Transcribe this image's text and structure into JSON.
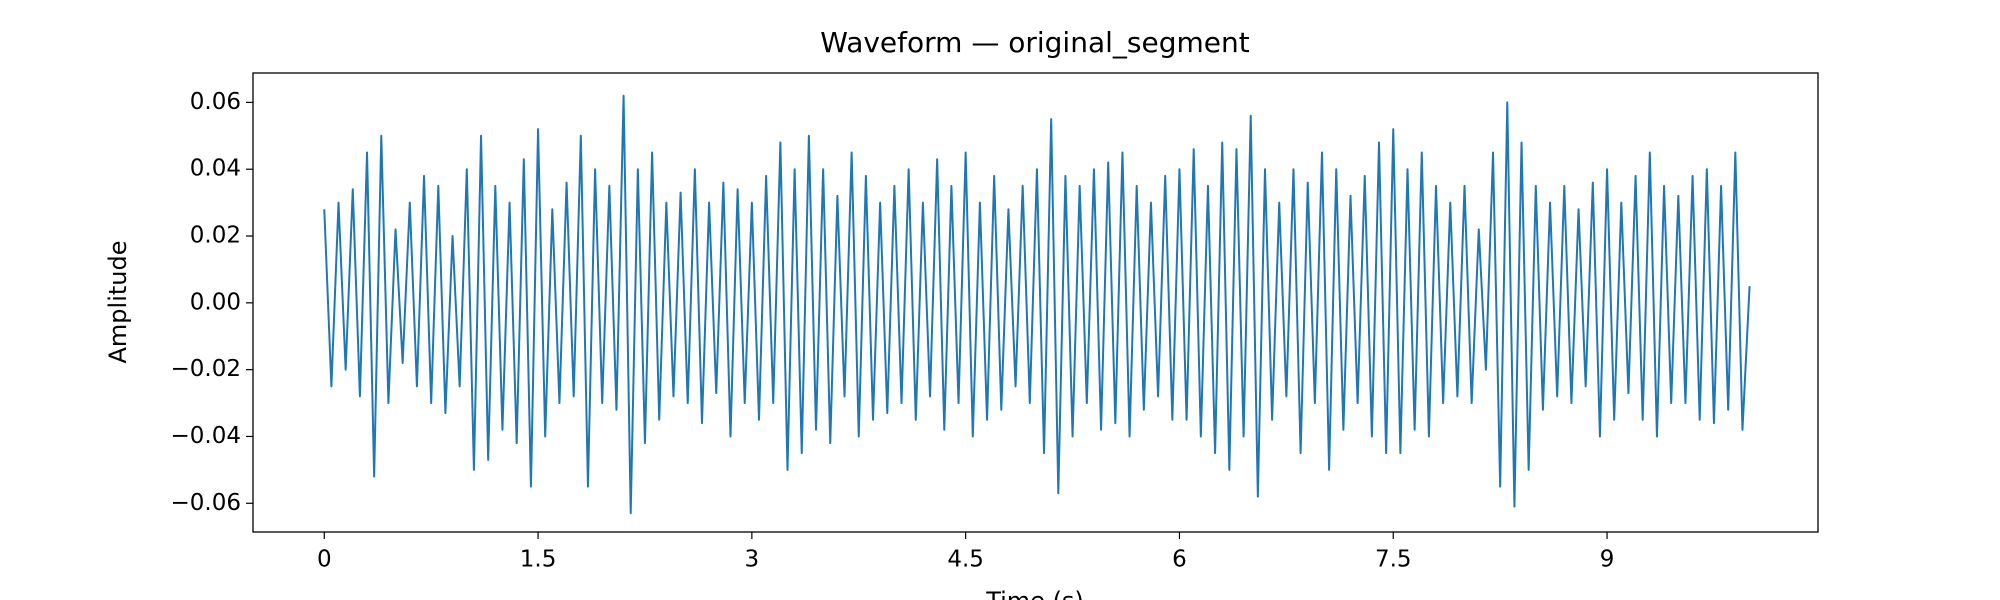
{
  "chart_data": {
    "type": "line",
    "title": "Waveform — original_segment",
    "xlabel": "Time (s)",
    "ylabel": "Amplitude",
    "color": "#1f77b4",
    "x": [
      0,
      0.05,
      0.1,
      0.15,
      0.2,
      0.25,
      0.3,
      0.35,
      0.4,
      0.45,
      0.5,
      0.55,
      0.6,
      0.65,
      0.7,
      0.75,
      0.8,
      0.85,
      0.9,
      0.95,
      1,
      1.05,
      1.1,
      1.15,
      1.2,
      1.25,
      1.3,
      1.35,
      1.4,
      1.45,
      1.5,
      1.55,
      1.6,
      1.65,
      1.7,
      1.75,
      1.8,
      1.85,
      1.9,
      1.95,
      2,
      2.05,
      2.1,
      2.15,
      2.2,
      2.25,
      2.3,
      2.35,
      2.4,
      2.45,
      2.5,
      2.55,
      2.6,
      2.65,
      2.7,
      2.75,
      2.8,
      2.85,
      2.9,
      2.95,
      3,
      3.05,
      3.1,
      3.15,
      3.2,
      3.25,
      3.3,
      3.35,
      3.4,
      3.45,
      3.5,
      3.55,
      3.6,
      3.65,
      3.7,
      3.75,
      3.8,
      3.85,
      3.9,
      3.95,
      4,
      4.05,
      4.1,
      4.15,
      4.2,
      4.25,
      4.3,
      4.35,
      4.4,
      4.45,
      4.5,
      4.55,
      4.6,
      4.65,
      4.7,
      4.75,
      4.8,
      4.85,
      4.9,
      4.95,
      5,
      5.05,
      5.1,
      5.15,
      5.2,
      5.25,
      5.3,
      5.35,
      5.4,
      5.45,
      5.5,
      5.55,
      5.6,
      5.65,
      5.7,
      5.75,
      5.8,
      5.85,
      5.9,
      5.95,
      6,
      6.05,
      6.1,
      6.15,
      6.2,
      6.25,
      6.3,
      6.35,
      6.4,
      6.45,
      6.5,
      6.55,
      6.6,
      6.65,
      6.7,
      6.75,
      6.8,
      6.85,
      6.9,
      6.95,
      7,
      7.05,
      7.1,
      7.15,
      7.2,
      7.25,
      7.3,
      7.35,
      7.4,
      7.45,
      7.5,
      7.55,
      7.6,
      7.65,
      7.7,
      7.75,
      7.8,
      7.85,
      7.9,
      7.95,
      8,
      8.05,
      8.1,
      8.15,
      8.2,
      8.25,
      8.3,
      8.35,
      8.4,
      8.45,
      8.5,
      8.55,
      8.6,
      8.65,
      8.7,
      8.75,
      8.8,
      8.85,
      8.9,
      8.95,
      9,
      9.05,
      9.1,
      9.15,
      9.2,
      9.25,
      9.3,
      9.35,
      9.4,
      9.45,
      9.5,
      9.55,
      9.6,
      9.65,
      9.7,
      9.75,
      9.8,
      9.85,
      9.9,
      9.95,
      10
    ],
    "values": [
      0.028,
      -0.025,
      0.03,
      -0.02,
      0.034,
      -0.028,
      0.045,
      -0.052,
      0.05,
      -0.03,
      0.022,
      -0.018,
      0.03,
      -0.025,
      0.038,
      -0.03,
      0.035,
      -0.033,
      0.02,
      -0.025,
      0.04,
      -0.05,
      0.05,
      -0.047,
      0.035,
      -0.038,
      0.03,
      -0.042,
      0.043,
      -0.055,
      0.052,
      -0.04,
      0.028,
      -0.03,
      0.036,
      -0.028,
      0.05,
      -0.055,
      0.04,
      -0.03,
      0.035,
      -0.032,
      0.062,
      -0.063,
      0.04,
      -0.042,
      0.045,
      -0.035,
      0.03,
      -0.028,
      0.033,
      -0.03,
      0.04,
      -0.036,
      0.03,
      -0.027,
      0.036,
      -0.04,
      0.034,
      -0.03,
      0.03,
      -0.035,
      0.038,
      -0.03,
      0.048,
      -0.05,
      0.04,
      -0.045,
      0.05,
      -0.038,
      0.04,
      -0.042,
      0.032,
      -0.028,
      0.045,
      -0.04,
      0.038,
      -0.035,
      0.03,
      -0.033,
      0.035,
      -0.03,
      0.04,
      -0.035,
      0.03,
      -0.028,
      0.043,
      -0.038,
      0.035,
      -0.03,
      0.045,
      -0.04,
      0.03,
      -0.035,
      0.038,
      -0.032,
      0.028,
      -0.025,
      0.035,
      -0.03,
      0.04,
      -0.045,
      0.055,
      -0.057,
      0.038,
      -0.04,
      0.035,
      -0.03,
      0.04,
      -0.038,
      0.042,
      -0.036,
      0.045,
      -0.04,
      0.035,
      -0.032,
      0.03,
      -0.028,
      0.038,
      -0.035,
      0.04,
      -0.035,
      0.046,
      -0.04,
      0.035,
      -0.045,
      0.048,
      -0.05,
      0.046,
      -0.04,
      0.056,
      -0.058,
      0.04,
      -0.035,
      0.03,
      -0.028,
      0.04,
      -0.045,
      0.036,
      -0.03,
      0.045,
      -0.05,
      0.04,
      -0.038,
      0.032,
      -0.03,
      0.038,
      -0.04,
      0.048,
      -0.045,
      0.052,
      -0.045,
      0.04,
      -0.038,
      0.045,
      -0.04,
      0.035,
      -0.03,
      0.03,
      -0.028,
      0.035,
      -0.03,
      0.022,
      -0.02,
      0.045,
      -0.055,
      0.06,
      -0.061,
      0.048,
      -0.05,
      0.035,
      -0.032,
      0.03,
      -0.028,
      0.035,
      -0.03,
      0.028,
      -0.025,
      0.036,
      -0.04,
      0.04,
      -0.035,
      0.03,
      -0.027,
      0.038,
      -0.035,
      0.045,
      -0.04,
      0.035,
      -0.03,
      0.032,
      -0.03,
      0.038,
      -0.035,
      0.04,
      -0.036,
      0.035,
      -0.032,
      0.045,
      -0.038,
      0.005
    ],
    "xlim": [
      -0.5,
      10.48
    ],
    "ylim": [
      -0.0686,
      0.0688
    ],
    "xticks": [
      0,
      1.5,
      3,
      4.5,
      6,
      7.5,
      9
    ],
    "yticks": [
      {
        "value": -0.06,
        "label": "−0.06"
      },
      {
        "value": -0.04,
        "label": "−0.04"
      },
      {
        "value": -0.02,
        "label": "−0.02"
      },
      {
        "value": 0,
        "label": "0.00"
      },
      0.02,
      0.04,
      0.06
    ]
  }
}
